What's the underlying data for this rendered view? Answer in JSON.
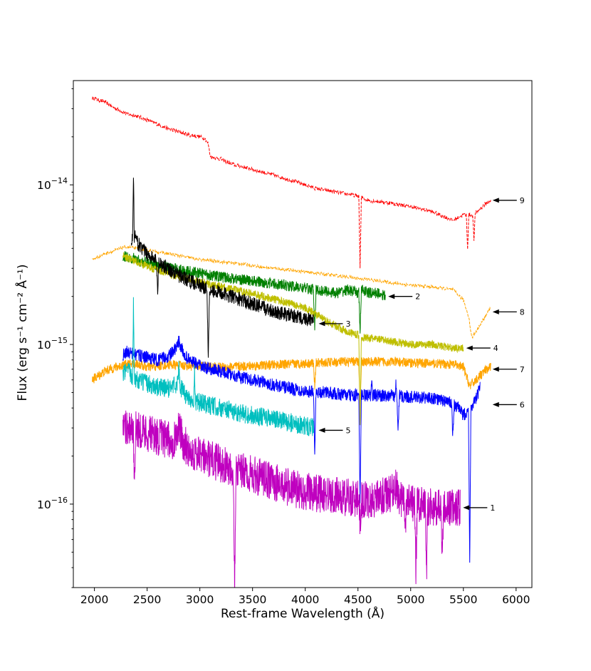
{
  "chart_data": {
    "type": "line",
    "title": "",
    "xlabel": "Rest-frame Wavelength (Å)",
    "ylabel": "Flux (erg s⁻¹ cm⁻² Å⁻¹)",
    "xlim": [
      1800,
      6150
    ],
    "ylim": [
      3e-17,
      4.5e-14
    ],
    "yscale": "log",
    "grid": false,
    "x_ticks": [
      2000,
      2500,
      3000,
      3500,
      4000,
      4500,
      5000,
      5500,
      6000
    ],
    "x_tick_labels": [
      "2000",
      "2500",
      "3000",
      "3500",
      "4000",
      "4500",
      "5000",
      "5500",
      "6000"
    ],
    "y_ticks": [
      1e-16,
      1e-15,
      1e-14
    ],
    "y_tick_labels": [
      {
        "base": "10",
        "exp": "−16"
      },
      {
        "base": "10",
        "exp": "−15"
      },
      {
        "base": "10",
        "exp": "−14"
      }
    ],
    "series": [
      {
        "label": "9",
        "color": "#ff0000",
        "dashed": true,
        "noise": 0.012,
        "x": [
          1980,
          2100,
          2200,
          2300,
          2400,
          2500,
          2600,
          2700,
          2800,
          2850,
          2900,
          3000,
          3050,
          3080,
          3100,
          3200,
          3300,
          3500,
          3700,
          3900,
          4100,
          4300,
          4500,
          4600,
          4800,
          5000,
          5200,
          5300,
          5400,
          5500,
          5600,
          5700,
          5760
        ],
        "y": [
          3.5e-14,
          3.3e-14,
          3e-14,
          2.8e-14,
          2.7e-14,
          2.55e-14,
          2.4e-14,
          2.25e-14,
          2.15e-14,
          2.1e-14,
          2.05e-14,
          2e-14,
          1.95e-14,
          1.8e-14,
          1.5e-14,
          1.45e-14,
          1.35e-14,
          1.25e-14,
          1.15e-14,
          1.05e-14,
          9.5e-15,
          9e-15,
          8.5e-15,
          8e-15,
          7.7e-15,
          7.3e-15,
          6.8e-15,
          6.4e-15,
          6e-15,
          6.5e-15,
          6.5e-15,
          7.5e-15,
          8e-15
        ],
        "dips": [
          [
            4520,
            3e-15
          ],
          [
            5540,
            4e-15
          ],
          [
            5600,
            4.5e-15
          ]
        ]
      },
      {
        "label": "8",
        "color": "#ffa500",
        "dashed": true,
        "noise": 0.01,
        "x": [
          1980,
          2100,
          2200,
          2300,
          2400,
          2500,
          2600,
          2700,
          2800,
          3000,
          3200,
          3400,
          3600,
          3800,
          4000,
          4200,
          4400,
          4600,
          4800,
          5000,
          5200,
          5400,
          5500,
          5550,
          5580,
          5650,
          5760
        ],
        "y": [
          3.4e-15,
          3.7e-15,
          3.9e-15,
          4.1e-15,
          4e-15,
          3.9e-15,
          3.8e-15,
          3.7e-15,
          3.6e-15,
          3.4e-15,
          3.3e-15,
          3.2e-15,
          3.05e-15,
          2.95e-15,
          2.85e-15,
          2.75e-15,
          2.65e-15,
          2.55e-15,
          2.45e-15,
          2.35e-15,
          2.3e-15,
          2.2e-15,
          1.9e-15,
          1.5e-15,
          1.1e-15,
          1.3e-15,
          1.7e-15
        ],
        "dips": []
      },
      {
        "label": "7",
        "color": "#ffa500",
        "dashed": false,
        "noise": 0.03,
        "x": [
          1980,
          2100,
          2200,
          2300,
          2400,
          2500,
          2600,
          2700,
          2800,
          3000,
          3200,
          3400,
          3600,
          3800,
          4000,
          4200,
          4400,
          4600,
          4800,
          5000,
          5200,
          5400,
          5500,
          5560,
          5620,
          5700,
          5760
        ],
        "y": [
          6e-16,
          6.8e-16,
          7.2e-16,
          7.5e-16,
          7.6e-16,
          7.2e-16,
          7.3e-16,
          7.5e-16,
          7.4e-16,
          7.3e-16,
          7.2e-16,
          7.3e-16,
          7.4e-16,
          7.5e-16,
          7.6e-16,
          7.7e-16,
          7.8e-16,
          7.8e-16,
          7.8e-16,
          7.7e-16,
          7.6e-16,
          7.5e-16,
          7.2e-16,
          5.5e-16,
          6e-16,
          6.8e-16,
          7.2e-16
        ],
        "dips": [
          [
            4090,
            5.5e-16
          ],
          [
            4520,
            4e-16
          ]
        ]
      },
      {
        "label": "2",
        "color": "#008000",
        "dashed": false,
        "noise": 0.035,
        "x": [
          2270,
          2350,
          2450,
          2550,
          2650,
          2750,
          2850,
          3000,
          3200,
          3400,
          3600,
          3800,
          4000,
          4100,
          4200,
          4300,
          4400,
          4500,
          4550,
          4600,
          4700,
          4760
        ],
        "y": [
          3.6e-15,
          3.5e-15,
          3.3e-15,
          3.2e-15,
          3.1e-15,
          3e-15,
          2.9e-15,
          2.8e-15,
          2.65e-15,
          2.55e-15,
          2.45e-15,
          2.35e-15,
          2.25e-15,
          2.2e-15,
          2.15e-15,
          2.1e-15,
          2.2e-15,
          2.1e-15,
          2.2e-15,
          2.1e-15,
          2.1e-15,
          2e-15
        ],
        "dips": [
          [
            4090,
            1.2e-15
          ],
          [
            4520,
            1.2e-15
          ]
        ]
      },
      {
        "label": "4",
        "color": "#bfbf00",
        "dashed": false,
        "noise": 0.025,
        "x": [
          2270,
          2350,
          2450,
          2550,
          2650,
          2750,
          2850,
          3000,
          3200,
          3400,
          3600,
          3800,
          4000,
          4100,
          4200,
          4300,
          4400,
          4500,
          4550,
          4600,
          4800,
          5000,
          5200,
          5400,
          5500
        ],
        "y": [
          3.6e-15,
          3.4e-15,
          3.2e-15,
          3e-15,
          2.85e-15,
          2.7e-15,
          2.6e-15,
          2.45e-15,
          2.3e-15,
          2.15e-15,
          2e-15,
          1.85e-15,
          1.7e-15,
          1.55e-15,
          1.4e-15,
          1.3e-15,
          1.2e-15,
          1.15e-15,
          1.1e-15,
          1.1e-15,
          1.05e-15,
          1e-15,
          1e-15,
          9.5e-16,
          9.5e-16
        ],
        "dips": [
          [
            4520,
            3e-16
          ]
        ]
      },
      {
        "label": "3",
        "color": "#000000",
        "dashed": false,
        "noise": 0.045,
        "x": [
          2350,
          2380,
          2400,
          2450,
          2500,
          2600,
          2700,
          2800,
          3000,
          3200,
          3400,
          3600,
          3800,
          4000,
          4080
        ],
        "y": [
          4.5e-15,
          4.8e-15,
          4.4e-15,
          4e-15,
          3.7e-15,
          3.3e-15,
          3e-15,
          2.7e-15,
          2.35e-15,
          2.1e-15,
          1.9e-15,
          1.7e-15,
          1.55e-15,
          1.45e-15,
          1.4e-15
        ],
        "spikes": [
          [
            2370,
            1.15e-14
          ],
          [
            4090,
            5.2e-15
          ]
        ],
        "dips": [
          [
            2600,
            2.2e-15
          ],
          [
            3080,
            8e-16
          ]
        ]
      },
      {
        "label": "6",
        "color": "#0000ff",
        "dashed": false,
        "noise": 0.04,
        "x": [
          2270,
          2300,
          2400,
          2500,
          2600,
          2700,
          2780,
          2800,
          2850,
          2900,
          3000,
          3200,
          3400,
          3600,
          3800,
          4000,
          4200,
          4400,
          4600,
          4800,
          5000,
          5200,
          5350,
          5450,
          5500,
          5560,
          5620,
          5660
        ],
        "y": [
          8.5e-16,
          9e-16,
          8.6e-16,
          8.3e-16,
          8e-16,
          8.4e-16,
          9.5e-16,
          1.05e-15,
          8.6e-16,
          8e-16,
          7.3e-16,
          6.8e-16,
          6.2e-16,
          5.8e-16,
          5.4e-16,
          5.1e-16,
          5e-16,
          4.8e-16,
          4.8e-16,
          4.8e-16,
          4.7e-16,
          4.6e-16,
          4.4e-16,
          4e-16,
          3.6e-16,
          4e-16,
          4.5e-16,
          5.5e-16
        ],
        "dips": [
          [
            4090,
            2e-16
          ],
          [
            4520,
            1e-16
          ],
          [
            4880,
            2.8e-16
          ],
          [
            5560,
            4e-17
          ],
          [
            5400,
            2.7e-16
          ]
        ],
        "spikes": [
          [
            4630,
            6e-16
          ],
          [
            4860,
            5.5e-16
          ]
        ]
      },
      {
        "label": "5",
        "color": "#00bfbf",
        "dashed": false,
        "noise": 0.06,
        "x": [
          2270,
          2320,
          2350,
          2400,
          2450,
          2500,
          2600,
          2700,
          2800,
          2850,
          2900,
          3000,
          3200,
          3400,
          3600,
          3800,
          4000,
          4080
        ],
        "y": [
          6.5e-16,
          6.8e-16,
          6.5e-16,
          6e-16,
          5.8e-16,
          5.7e-16,
          5.4e-16,
          5.3e-16,
          5.8e-16,
          4.9e-16,
          4.6e-16,
          4.3e-16,
          4e-16,
          3.7e-16,
          3.5e-16,
          3.3e-16,
          3.1e-16,
          3e-16
        ],
        "spikes": [
          [
            2370,
            1.9e-15
          ],
          [
            2800,
            8e-16
          ],
          [
            2950,
            6.5e-16
          ]
        ],
        "dips": [
          [
            4090,
            1.5e-16
          ]
        ]
      },
      {
        "label": "1",
        "color": "#bf00bf",
        "dashed": false,
        "noise": 0.12,
        "x": [
          2270,
          2300,
          2400,
          2500,
          2600,
          2700,
          2750,
          2800,
          2850,
          2900,
          3000,
          3200,
          3400,
          3600,
          3800,
          4000,
          4200,
          4400,
          4600,
          4700,
          4800,
          4850,
          4900,
          5000,
          5200,
          5400,
          5470
        ],
        "y": [
          3e-16,
          3.1e-16,
          3e-16,
          2.8e-16,
          2.65e-16,
          2.5e-16,
          2.5e-16,
          3e-16,
          2.4e-16,
          2.2e-16,
          2e-16,
          1.8e-16,
          1.6e-16,
          1.45e-16,
          1.3e-16,
          1.2e-16,
          1.15e-16,
          1.1e-16,
          1.05e-16,
          1.1e-16,
          1.15e-16,
          1.3e-16,
          1.1e-16,
          1e-16,
          9.5e-17,
          9.5e-17,
          9.5e-17
        ],
        "dips": [
          [
            3330,
            3e-17
          ],
          [
            2380,
            1.1e-16
          ],
          [
            4520,
            8e-17
          ],
          [
            4950,
            6e-17
          ],
          [
            5050,
            3.5e-17
          ],
          [
            5150,
            3.5e-17
          ],
          [
            5300,
            4e-17
          ]
        ]
      }
    ],
    "annotations": [
      {
        "text": "9",
        "x": 5750,
        "y": 8e-15
      },
      {
        "text": "2",
        "x": 4760,
        "y": 2e-15
      },
      {
        "text": "8",
        "x": 5750,
        "y": 1.6e-15
      },
      {
        "text": "3",
        "x": 4100,
        "y": 1.35e-15
      },
      {
        "text": "4",
        "x": 5500,
        "y": 9.5e-16
      },
      {
        "text": "7",
        "x": 5750,
        "y": 7e-16
      },
      {
        "text": "6",
        "x": 5750,
        "y": 4.2e-16
      },
      {
        "text": "5",
        "x": 4100,
        "y": 2.9e-16
      },
      {
        "text": "1",
        "x": 5470,
        "y": 9.5e-17
      }
    ]
  }
}
